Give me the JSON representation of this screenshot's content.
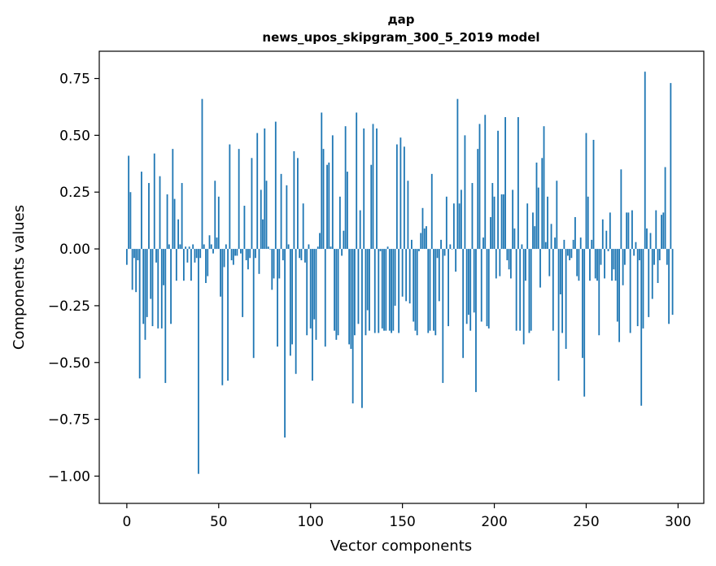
{
  "chart_data": {
    "type": "bar",
    "title_line1": "дар",
    "title_line2": "news_upos_skipgram_300_5_2019 model",
    "xlabel": "Vector components",
    "ylabel": "Components values",
    "xlim": [
      -15,
      314
    ],
    "ylim": [
      -1.12,
      0.87
    ],
    "xticks": [
      0,
      50,
      100,
      150,
      200,
      250,
      300
    ],
    "xtick_labels": [
      "0",
      "50",
      "100",
      "150",
      "200",
      "250",
      "300"
    ],
    "yticks": [
      0.75,
      0.5,
      0.25,
      0.0,
      -0.25,
      -0.5,
      -0.75,
      -1.0
    ],
    "ytick_labels": [
      "0.75",
      "0.50",
      "0.25",
      "0.00",
      "−0.25",
      "−0.50",
      "−0.75",
      "−1.00"
    ],
    "bar_color": "#1f77b4",
    "x": "0..299",
    "values": [
      -0.07,
      0.41,
      0.25,
      -0.18,
      -0.04,
      -0.19,
      -0.05,
      -0.57,
      0.34,
      -0.33,
      -0.4,
      -0.3,
      0.29,
      -0.22,
      -0.34,
      0.42,
      -0.06,
      -0.35,
      0.32,
      -0.35,
      -0.16,
      -0.59,
      0.24,
      0.02,
      -0.33,
      0.44,
      0.22,
      -0.14,
      0.13,
      0.02,
      0.29,
      -0.14,
      0.01,
      -0.06,
      0.01,
      -0.14,
      0.02,
      -0.06,
      -0.04,
      -0.99,
      -0.04,
      0.66,
      0.02,
      -0.15,
      -0.12,
      0.06,
      0.02,
      -0.02,
      0.3,
      0.05,
      0.23,
      -0.21,
      -0.6,
      -0.08,
      0.02,
      -0.58,
      0.46,
      -0.05,
      -0.07,
      -0.03,
      -0.03,
      0.44,
      -0.02,
      -0.3,
      0.19,
      -0.05,
      -0.09,
      -0.04,
      0.4,
      -0.48,
      -0.04,
      0.51,
      -0.11,
      0.26,
      0.13,
      0.53,
      0.3,
      0.01,
      0.0,
      -0.18,
      -0.13,
      0.56,
      -0.43,
      -0.13,
      0.33,
      -0.05,
      -0.83,
      0.28,
      0.02,
      -0.47,
      -0.42,
      0.43,
      -0.55,
      0.4,
      -0.04,
      -0.05,
      0.2,
      -0.06,
      -0.38,
      0.02,
      -0.35,
      -0.58,
      -0.31,
      -0.4,
      0.01,
      0.07,
      0.6,
      0.44,
      -0.43,
      0.37,
      0.38,
      0.01,
      0.5,
      -0.36,
      -0.4,
      -0.38,
      0.23,
      -0.03,
      0.08,
      0.54,
      0.34,
      -0.42,
      -0.44,
      -0.68,
      -0.38,
      0.6,
      -0.33,
      0.17,
      -0.7,
      0.53,
      -0.38,
      -0.27,
      -0.36,
      0.37,
      0.55,
      -0.37,
      0.53,
      -0.37,
      -0.01,
      -0.35,
      -0.36,
      -0.36,
      0.01,
      -0.36,
      -0.37,
      -0.36,
      -0.25,
      0.46,
      -0.37,
      0.49,
      -0.21,
      0.45,
      -0.23,
      0.3,
      -0.24,
      0.04,
      -0.32,
      -0.36,
      -0.38,
      -0.01,
      0.07,
      0.18,
      0.09,
      0.1,
      -0.37,
      -0.36,
      0.33,
      -0.36,
      -0.38,
      -0.04,
      -0.23,
      0.04,
      -0.59,
      -0.03,
      0.23,
      -0.34,
      0.02,
      0.0,
      0.2,
      -0.1,
      0.66,
      0.2,
      0.26,
      -0.48,
      0.5,
      -0.33,
      -0.29,
      -0.36,
      0.29,
      -0.28,
      -0.63,
      0.44,
      0.55,
      -0.32,
      0.05,
      0.59,
      -0.34,
      -0.35,
      0.14,
      0.29,
      0.23,
      -0.13,
      0.52,
      -0.12,
      0.24,
      0.24,
      0.58,
      -0.05,
      -0.09,
      -0.13,
      0.26,
      0.09,
      -0.36,
      0.58,
      -0.36,
      0.02,
      -0.42,
      -0.14,
      0.2,
      -0.37,
      -0.36,
      0.16,
      0.1,
      0.38,
      0.27,
      -0.17,
      0.4,
      0.54,
      0.03,
      0.23,
      -0.12,
      0.11,
      -0.36,
      0.05,
      0.3,
      -0.58,
      -0.2,
      -0.37,
      0.04,
      -0.44,
      -0.03,
      -0.05,
      -0.04,
      0.04,
      0.14,
      -0.12,
      -0.14,
      0.05,
      -0.48,
      -0.65,
      0.51,
      0.23,
      -0.14,
      0.04,
      0.48,
      -0.13,
      -0.14,
      -0.38,
      -0.07,
      0.13,
      -0.13,
      0.08,
      -0.01,
      0.16,
      -0.14,
      -0.09,
      -0.14,
      -0.32,
      -0.41,
      0.35,
      -0.16,
      -0.07,
      0.16,
      0.16,
      -0.37,
      0.17,
      -0.03,
      0.03,
      -0.34,
      -0.05,
      -0.69,
      -0.35,
      0.78,
      0.09,
      -0.3,
      0.07,
      -0.22,
      -0.07,
      0.17,
      -0.15,
      -0.05,
      0.15,
      0.16,
      0.36,
      -0.07,
      -0.33,
      0.73,
      -0.29
    ]
  }
}
